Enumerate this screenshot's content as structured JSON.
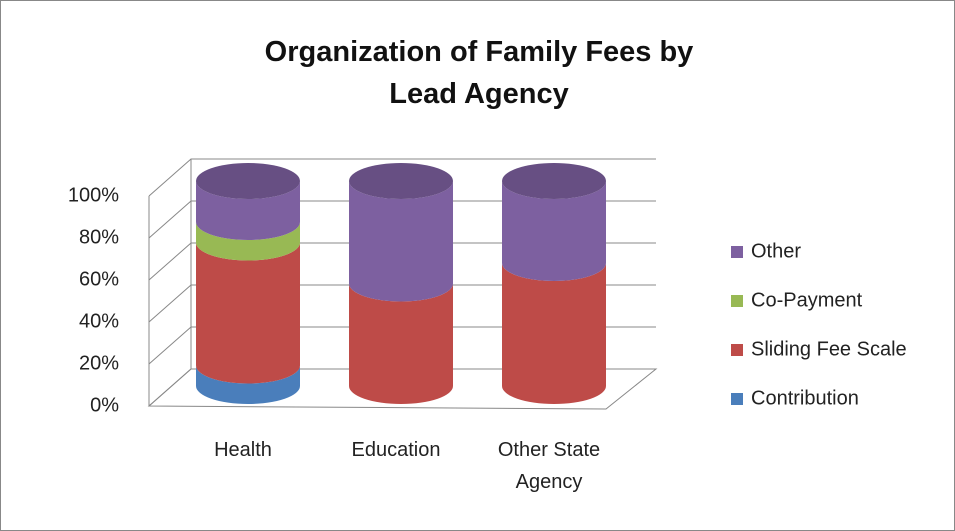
{
  "chart_data": {
    "type": "stacked_cylinder",
    "title": "Organization of Family Fees by Lead Agency",
    "categories": [
      "Health",
      "Education",
      "Other State Agency"
    ],
    "series": [
      {
        "name": "Contribution",
        "color": "#4a7ebb",
        "values": [
          10,
          0,
          0
        ]
      },
      {
        "name": "Sliding Fee Scale",
        "color": "#be4b48",
        "values": [
          60,
          50,
          60
        ]
      },
      {
        "name": "Co-Payment",
        "color": "#98b954",
        "values": [
          10,
          0,
          0
        ]
      },
      {
        "name": "Other",
        "color": "#7d60a0",
        "values": [
          20,
          50,
          40
        ]
      }
    ],
    "ylim": [
      0,
      100
    ],
    "yticks": [
      {
        "value": 0,
        "label": "0%"
      },
      {
        "value": 20,
        "label": "20%"
      },
      {
        "value": 40,
        "label": "40%"
      },
      {
        "value": 60,
        "label": "60%"
      },
      {
        "value": 80,
        "label": "80%"
      },
      {
        "value": 100,
        "label": "100%"
      }
    ],
    "grid": true,
    "legend": "right"
  }
}
